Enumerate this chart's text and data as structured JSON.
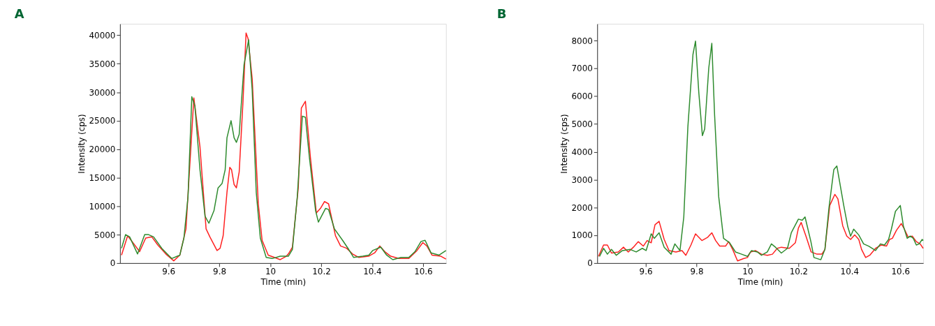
{
  "chart_data": [
    {
      "type": "line",
      "title": "A",
      "xlabel": "Time (min)",
      "ylabel": "Intensity (cps)",
      "xlim": [
        9.41,
        10.69
      ],
      "ylim": [
        0,
        42000
      ],
      "xticks": [
        9.6,
        9.8,
        10,
        10.2,
        10.4,
        10.6
      ],
      "yticks": [
        0,
        5000,
        10000,
        15000,
        20000,
        25000,
        30000,
        35000,
        40000
      ],
      "grid": false,
      "legend": false,
      "line_style": "solid",
      "marker": "none",
      "series": [
        {
          "color": "#ff2020",
          "x": [
            9.416,
            9.44,
            9.464,
            9.487,
            9.511,
            9.535,
            9.558,
            9.59,
            9.621,
            9.645,
            9.669,
            9.7,
            9.724,
            9.748,
            9.763,
            9.791,
            9.803,
            9.815,
            9.83,
            9.841,
            9.848,
            9.858,
            9.867,
            9.878,
            9.893,
            9.905,
            9.913,
            9.929,
            9.953,
            9.968,
            9.992,
            10.016,
            10.039,
            10.063,
            10.071,
            10.087,
            10.11,
            10.122,
            10.138,
            10.158,
            10.181,
            10.197,
            10.213,
            10.229,
            10.256,
            10.276,
            10.3,
            10.323,
            10.347,
            10.386,
            10.41,
            10.43,
            10.45,
            10.473,
            10.505,
            10.544,
            10.576,
            10.599,
            10.615,
            10.635,
            10.67,
            10.69
          ],
          "values": [
            1400,
            4800,
            3400,
            2000,
            4400,
            4600,
            3200,
            1600,
            400,
            1400,
            6000,
            29000,
            20400,
            6000,
            4600,
            2200,
            2600,
            4800,
            12400,
            16800,
            16400,
            13800,
            13200,
            16000,
            28400,
            40400,
            39400,
            32400,
            10400,
            4000,
            1400,
            1000,
            600,
            1200,
            1600,
            2800,
            13200,
            27200,
            28400,
            18400,
            8800,
            9600,
            10800,
            10400,
            4800,
            3000,
            2600,
            1600,
            1000,
            1200,
            1800,
            3000,
            2000,
            1200,
            800,
            800,
            2200,
            3600,
            3000,
            1400,
            1200,
            700
          ]
        },
        {
          "color": "#2e8b2e",
          "x": [
            9.416,
            9.432,
            9.448,
            9.479,
            9.507,
            9.522,
            9.542,
            9.574,
            9.6,
            9.613,
            9.645,
            9.661,
            9.677,
            9.692,
            9.704,
            9.724,
            9.744,
            9.759,
            9.779,
            9.795,
            9.811,
            9.823,
            9.83,
            9.846,
            9.858,
            9.867,
            9.878,
            9.897,
            9.915,
            9.929,
            9.945,
            9.961,
            9.984,
            10.008,
            10.039,
            10.071,
            10.087,
            10.106,
            10.126,
            10.138,
            10.154,
            10.178,
            10.189,
            10.217,
            10.229,
            10.252,
            10.284,
            10.308,
            10.327,
            10.363,
            10.387,
            10.402,
            10.434,
            10.457,
            10.481,
            10.513,
            10.544,
            10.568,
            10.592,
            10.608,
            10.631,
            10.663,
            10.69
          ],
          "values": [
            2600,
            5000,
            4600,
            1600,
            5000,
            5000,
            4600,
            2600,
            1400,
            800,
            1400,
            4400,
            11600,
            29200,
            27600,
            16400,
            8200,
            7000,
            9200,
            13200,
            14000,
            16400,
            22000,
            25000,
            22000,
            21200,
            22600,
            34800,
            39200,
            30400,
            12400,
            4400,
            1000,
            800,
            1200,
            1200,
            2400,
            11600,
            25800,
            25600,
            18400,
            9200,
            7200,
            9600,
            9400,
            6000,
            4000,
            2400,
            1000,
            1200,
            1400,
            2200,
            2800,
            1400,
            600,
            1000,
            1000,
            2000,
            3800,
            4000,
            1800,
            1400,
            2200
          ]
        }
      ]
    },
    {
      "type": "line",
      "title": "B",
      "xlabel": "Time (min)",
      "ylabel": "Intensity (cps)",
      "xlim": [
        9.41,
        10.69
      ],
      "ylim": [
        0,
        8600
      ],
      "xticks": [
        9.6,
        9.8,
        10,
        10.2,
        10.4,
        10.6
      ],
      "yticks": [
        0,
        1000,
        2000,
        3000,
        4000,
        5000,
        6000,
        7000,
        8000
      ],
      "grid": false,
      "legend": false,
      "line_style": "solid",
      "marker": "none",
      "series": [
        {
          "color": "#ff2020",
          "x": [
            9.415,
            9.435,
            9.45,
            9.466,
            9.493,
            9.513,
            9.532,
            9.552,
            9.571,
            9.591,
            9.606,
            9.622,
            9.637,
            9.653,
            9.673,
            9.692,
            9.719,
            9.743,
            9.758,
            9.778,
            9.796,
            9.821,
            9.844,
            9.86,
            9.875,
            9.891,
            9.914,
            9.926,
            9.942,
            9.961,
            9.984,
            10.0,
            10.012,
            10.031,
            10.055,
            10.078,
            10.098,
            10.117,
            10.133,
            10.164,
            10.188,
            10.2,
            10.211,
            10.231,
            10.25,
            10.273,
            10.292,
            10.304,
            10.323,
            10.343,
            10.355,
            10.374,
            10.39,
            10.405,
            10.421,
            10.437,
            10.448,
            10.464,
            10.48,
            10.503,
            10.526,
            10.546,
            10.558,
            10.569,
            10.585,
            10.604,
            10.616,
            10.631,
            10.647,
            10.663,
            10.678,
            10.69
          ],
          "values": [
            240,
            650,
            650,
            360,
            400,
            570,
            400,
            570,
            770,
            610,
            810,
            730,
            1380,
            1500,
            850,
            450,
            400,
            450,
            280,
            650,
            1050,
            810,
            930,
            1090,
            810,
            610,
            610,
            770,
            490,
            80,
            160,
            200,
            400,
            450,
            320,
            280,
            320,
            530,
            570,
            530,
            730,
            1260,
            1460,
            930,
            400,
            320,
            320,
            490,
            2070,
            2470,
            2310,
            1340,
            970,
            850,
            1010,
            850,
            490,
            200,
            280,
            530,
            650,
            610,
            850,
            890,
            1180,
            1420,
            1220,
            930,
            970,
            770,
            690,
            530
          ]
        },
        {
          "color": "#2e8b2e",
          "x": [
            9.419,
            9.435,
            9.45,
            9.466,
            9.485,
            9.509,
            9.54,
            9.563,
            9.587,
            9.602,
            9.622,
            9.634,
            9.653,
            9.673,
            9.7,
            9.715,
            9.735,
            9.75,
            9.766,
            9.786,
            9.796,
            9.809,
            9.823,
            9.832,
            9.848,
            9.86,
            9.871,
            9.887,
            9.906,
            9.93,
            9.953,
            9.977,
            10.0,
            10.016,
            10.039,
            10.055,
            10.078,
            10.094,
            10.11,
            10.133,
            10.157,
            10.172,
            10.2,
            10.215,
            10.226,
            10.249,
            10.261,
            10.288,
            10.304,
            10.32,
            10.339,
            10.351,
            10.378,
            10.394,
            10.405,
            10.417,
            10.437,
            10.456,
            10.476,
            10.503,
            10.522,
            10.538,
            10.554,
            10.565,
            10.581,
            10.6,
            10.612,
            10.627,
            10.639,
            10.651,
            10.663,
            10.674,
            10.686,
            10.69
          ],
          "values": [
            240,
            530,
            320,
            490,
            280,
            450,
            490,
            400,
            530,
            450,
            1050,
            890,
            1090,
            570,
            320,
            690,
            450,
            1660,
            4900,
            7500,
            7980,
            6120,
            4580,
            4820,
            7010,
            7900,
            5310,
            2390,
            890,
            730,
            400,
            320,
            240,
            450,
            400,
            280,
            400,
            690,
            570,
            360,
            530,
            1090,
            1580,
            1540,
            1660,
            770,
            200,
            120,
            490,
            1990,
            3360,
            3490,
            2070,
            1300,
            970,
            1220,
            1010,
            690,
            610,
            450,
            690,
            650,
            850,
            1220,
            1860,
            2070,
            1340,
            890,
            970,
            890,
            650,
            690,
            850,
            810
          ]
        }
      ]
    }
  ]
}
